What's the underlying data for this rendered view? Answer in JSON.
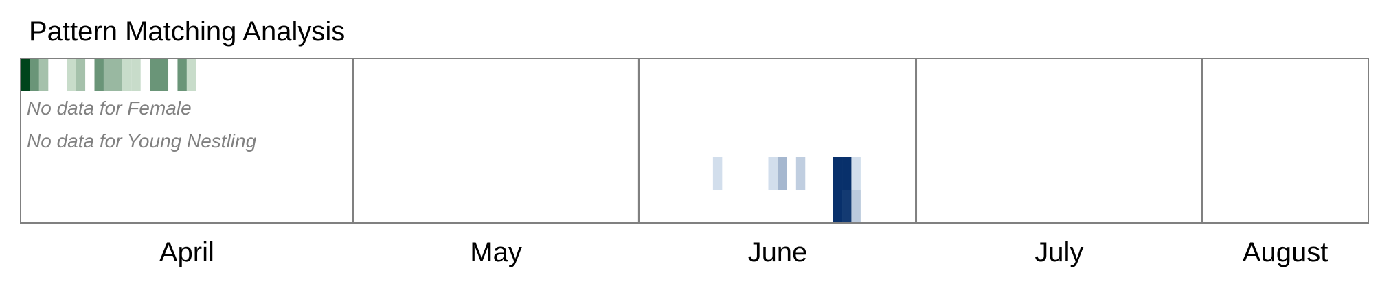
{
  "chart_data": {
    "type": "heatmap",
    "title": "Pattern Matching Analysis",
    "x_start": "2009-03-26",
    "x_end": "2009-08-19",
    "months": [
      {
        "label": "April",
        "start": "2009-03-26",
        "end": "2009-04-30"
      },
      {
        "label": "May",
        "start": "2009-05-01",
        "end": "2009-05-31"
      },
      {
        "label": "June",
        "start": "2009-06-01",
        "end": "2009-06-30"
      },
      {
        "label": "July",
        "start": "2009-07-01",
        "end": "2009-07-31"
      },
      {
        "label": "August",
        "start": "2009-08-01",
        "end": "2009-08-19"
      }
    ],
    "rows": [
      {
        "colormap": "Greens",
        "cells": [
          {
            "date": "2009-03-26",
            "value": 1.0
          },
          {
            "date": "2009-03-27",
            "value": 0.55
          },
          {
            "date": "2009-03-28",
            "value": 0.3
          },
          {
            "date": "2009-03-31",
            "value": 0.15
          },
          {
            "date": "2009-04-01",
            "value": 0.3
          },
          {
            "date": "2009-04-03",
            "value": 0.55
          },
          {
            "date": "2009-04-04",
            "value": 0.35
          },
          {
            "date": "2009-04-05",
            "value": 0.35
          },
          {
            "date": "2009-04-06",
            "value": 0.15
          },
          {
            "date": "2009-04-07",
            "value": 0.15
          },
          {
            "date": "2009-04-09",
            "value": 0.55
          },
          {
            "date": "2009-04-10",
            "value": 0.55
          },
          {
            "date": "2009-04-12",
            "value": 0.55
          },
          {
            "date": "2009-04-13",
            "value": 0.15
          }
        ]
      },
      {
        "colormap": "",
        "cells": [],
        "message": "No data for Female"
      },
      {
        "colormap": "",
        "cells": [],
        "message": "No data for Young Nestling"
      },
      {
        "colormap": "Blues",
        "cells": [
          {
            "date": "2009-06-09",
            "value": 0.1
          },
          {
            "date": "2009-06-15",
            "value": 0.1
          },
          {
            "date": "2009-06-16",
            "value": 0.3
          },
          {
            "date": "2009-06-18",
            "value": 0.18
          },
          {
            "date": "2009-06-22",
            "value": 1.0
          },
          {
            "date": "2009-06-23",
            "value": 1.0
          },
          {
            "date": "2009-06-24",
            "value": 0.1
          }
        ]
      },
      {
        "colormap": "Blues",
        "cells": [
          {
            "date": "2009-06-22",
            "value": 1.0
          },
          {
            "date": "2009-06-23",
            "value": 0.95
          },
          {
            "date": "2009-06-24",
            "value": 0.2
          }
        ]
      }
    ]
  }
}
